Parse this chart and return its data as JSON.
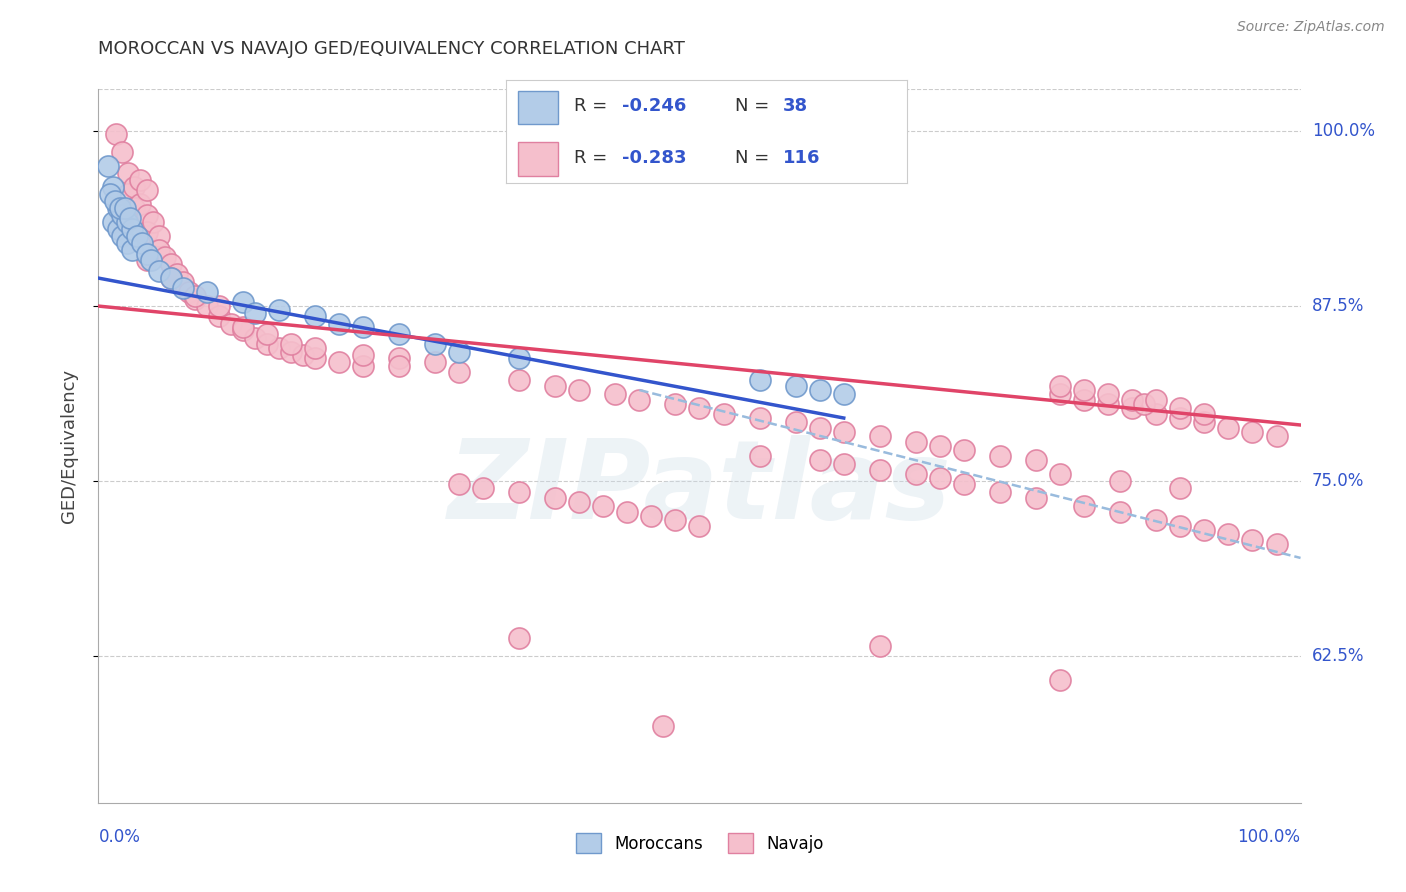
{
  "title": "MOROCCAN VS NAVAJO GED/EQUIVALENCY CORRELATION CHART",
  "source": "Source: ZipAtlas.com",
  "ylabel": "GED/Equivalency",
  "xlim": [
    0.0,
    1.0
  ],
  "ylim": [
    0.52,
    1.03
  ],
  "yticks": [
    0.625,
    0.75,
    0.875,
    1.0
  ],
  "ytick_labels": [
    "62.5%",
    "75.0%",
    "87.5%",
    "100.0%"
  ],
  "moroccan_color": "#b3cce8",
  "moroccan_edge": "#7099cc",
  "navajo_color": "#f5bfcc",
  "navajo_edge": "#e080a0",
  "moroccan_line_color": "#3355cc",
  "navajo_line_color": "#e04468",
  "dashed_line_color": "#99bbdd",
  "axis_label_color": "#3355cc",
  "background_color": "#ffffff",
  "grid_color": "#cccccc",
  "watermark_color": "#ccdde8",
  "legend_moroccan_R": "-0.246",
  "legend_moroccan_N": "38",
  "legend_navajo_R": "-0.283",
  "legend_navajo_N": "116",
  "moroccan_line_x0": 0.0,
  "moroccan_line_x1": 0.62,
  "moroccan_line_y0": 0.895,
  "moroccan_line_y1": 0.795,
  "navajo_line_x0": 0.0,
  "navajo_line_x1": 1.0,
  "navajo_line_y0": 0.875,
  "navajo_line_y1": 0.79,
  "dash_line_x0": 0.45,
  "dash_line_x1": 1.0,
  "dash_line_y0": 0.815,
  "dash_line_y1": 0.695,
  "moroccan_points": [
    [
      0.008,
      0.975
    ],
    [
      0.012,
      0.96
    ],
    [
      0.012,
      0.935
    ],
    [
      0.016,
      0.945
    ],
    [
      0.016,
      0.93
    ],
    [
      0.02,
      0.94
    ],
    [
      0.02,
      0.925
    ],
    [
      0.024,
      0.935
    ],
    [
      0.024,
      0.92
    ],
    [
      0.028,
      0.93
    ],
    [
      0.028,
      0.915
    ],
    [
      0.01,
      0.955
    ],
    [
      0.014,
      0.95
    ],
    [
      0.018,
      0.945
    ],
    [
      0.022,
      0.945
    ],
    [
      0.026,
      0.938
    ],
    [
      0.032,
      0.925
    ],
    [
      0.036,
      0.92
    ],
    [
      0.04,
      0.912
    ],
    [
      0.044,
      0.908
    ],
    [
      0.05,
      0.9
    ],
    [
      0.06,
      0.895
    ],
    [
      0.07,
      0.888
    ],
    [
      0.09,
      0.885
    ],
    [
      0.12,
      0.878
    ],
    [
      0.15,
      0.872
    ],
    [
      0.18,
      0.868
    ],
    [
      0.22,
      0.86
    ],
    [
      0.25,
      0.855
    ],
    [
      0.28,
      0.848
    ],
    [
      0.13,
      0.87
    ],
    [
      0.2,
      0.862
    ],
    [
      0.3,
      0.842
    ],
    [
      0.35,
      0.838
    ],
    [
      0.55,
      0.822
    ],
    [
      0.58,
      0.818
    ],
    [
      0.6,
      0.815
    ],
    [
      0.62,
      0.812
    ]
  ],
  "navajo_points": [
    [
      0.015,
      0.998
    ],
    [
      0.02,
      0.985
    ],
    [
      0.025,
      0.97
    ],
    [
      0.025,
      0.955
    ],
    [
      0.03,
      0.96
    ],
    [
      0.03,
      0.945
    ],
    [
      0.035,
      0.965
    ],
    [
      0.035,
      0.948
    ],
    [
      0.04,
      0.958
    ],
    [
      0.04,
      0.94
    ],
    [
      0.04,
      0.928
    ],
    [
      0.045,
      0.935
    ],
    [
      0.05,
      0.925
    ],
    [
      0.05,
      0.915
    ],
    [
      0.055,
      0.91
    ],
    [
      0.06,
      0.905
    ],
    [
      0.065,
      0.898
    ],
    [
      0.07,
      0.892
    ],
    [
      0.075,
      0.885
    ],
    [
      0.08,
      0.88
    ],
    [
      0.09,
      0.875
    ],
    [
      0.1,
      0.868
    ],
    [
      0.11,
      0.862
    ],
    [
      0.12,
      0.858
    ],
    [
      0.13,
      0.852
    ],
    [
      0.14,
      0.848
    ],
    [
      0.15,
      0.845
    ],
    [
      0.16,
      0.842
    ],
    [
      0.17,
      0.84
    ],
    [
      0.18,
      0.838
    ],
    [
      0.2,
      0.835
    ],
    [
      0.22,
      0.832
    ],
    [
      0.12,
      0.86
    ],
    [
      0.14,
      0.855
    ],
    [
      0.16,
      0.848
    ],
    [
      0.18,
      0.845
    ],
    [
      0.22,
      0.84
    ],
    [
      0.25,
      0.838
    ],
    [
      0.28,
      0.835
    ],
    [
      0.1,
      0.875
    ],
    [
      0.08,
      0.882
    ],
    [
      0.06,
      0.895
    ],
    [
      0.04,
      0.908
    ],
    [
      0.02,
      0.935
    ],
    [
      0.25,
      0.832
    ],
    [
      0.3,
      0.828
    ],
    [
      0.35,
      0.822
    ],
    [
      0.38,
      0.818
    ],
    [
      0.4,
      0.815
    ],
    [
      0.43,
      0.812
    ],
    [
      0.45,
      0.808
    ],
    [
      0.48,
      0.805
    ],
    [
      0.5,
      0.802
    ],
    [
      0.52,
      0.798
    ],
    [
      0.55,
      0.795
    ],
    [
      0.58,
      0.792
    ],
    [
      0.6,
      0.788
    ],
    [
      0.62,
      0.785
    ],
    [
      0.65,
      0.782
    ],
    [
      0.68,
      0.778
    ],
    [
      0.7,
      0.775
    ],
    [
      0.72,
      0.772
    ],
    [
      0.75,
      0.768
    ],
    [
      0.78,
      0.765
    ],
    [
      0.8,
      0.812
    ],
    [
      0.82,
      0.808
    ],
    [
      0.84,
      0.805
    ],
    [
      0.86,
      0.802
    ],
    [
      0.88,
      0.798
    ],
    [
      0.9,
      0.795
    ],
    [
      0.92,
      0.792
    ],
    [
      0.94,
      0.788
    ],
    [
      0.96,
      0.785
    ],
    [
      0.98,
      0.782
    ],
    [
      0.8,
      0.818
    ],
    [
      0.82,
      0.815
    ],
    [
      0.84,
      0.812
    ],
    [
      0.86,
      0.808
    ],
    [
      0.87,
      0.805
    ],
    [
      0.88,
      0.808
    ],
    [
      0.9,
      0.802
    ],
    [
      0.92,
      0.798
    ],
    [
      0.8,
      0.755
    ],
    [
      0.85,
      0.75
    ],
    [
      0.9,
      0.745
    ],
    [
      0.55,
      0.768
    ],
    [
      0.6,
      0.765
    ],
    [
      0.62,
      0.762
    ],
    [
      0.65,
      0.758
    ],
    [
      0.68,
      0.755
    ],
    [
      0.7,
      0.752
    ],
    [
      0.72,
      0.748
    ],
    [
      0.75,
      0.742
    ],
    [
      0.78,
      0.738
    ],
    [
      0.82,
      0.732
    ],
    [
      0.85,
      0.728
    ],
    [
      0.88,
      0.722
    ],
    [
      0.9,
      0.718
    ],
    [
      0.92,
      0.715
    ],
    [
      0.94,
      0.712
    ],
    [
      0.96,
      0.708
    ],
    [
      0.98,
      0.705
    ],
    [
      0.3,
      0.748
    ],
    [
      0.32,
      0.745
    ],
    [
      0.35,
      0.742
    ],
    [
      0.38,
      0.738
    ],
    [
      0.4,
      0.735
    ],
    [
      0.42,
      0.732
    ],
    [
      0.44,
      0.728
    ],
    [
      0.46,
      0.725
    ],
    [
      0.48,
      0.722
    ],
    [
      0.5,
      0.718
    ],
    [
      0.35,
      0.638
    ],
    [
      0.65,
      0.632
    ],
    [
      0.8,
      0.608
    ],
    [
      0.47,
      0.575
    ]
  ]
}
